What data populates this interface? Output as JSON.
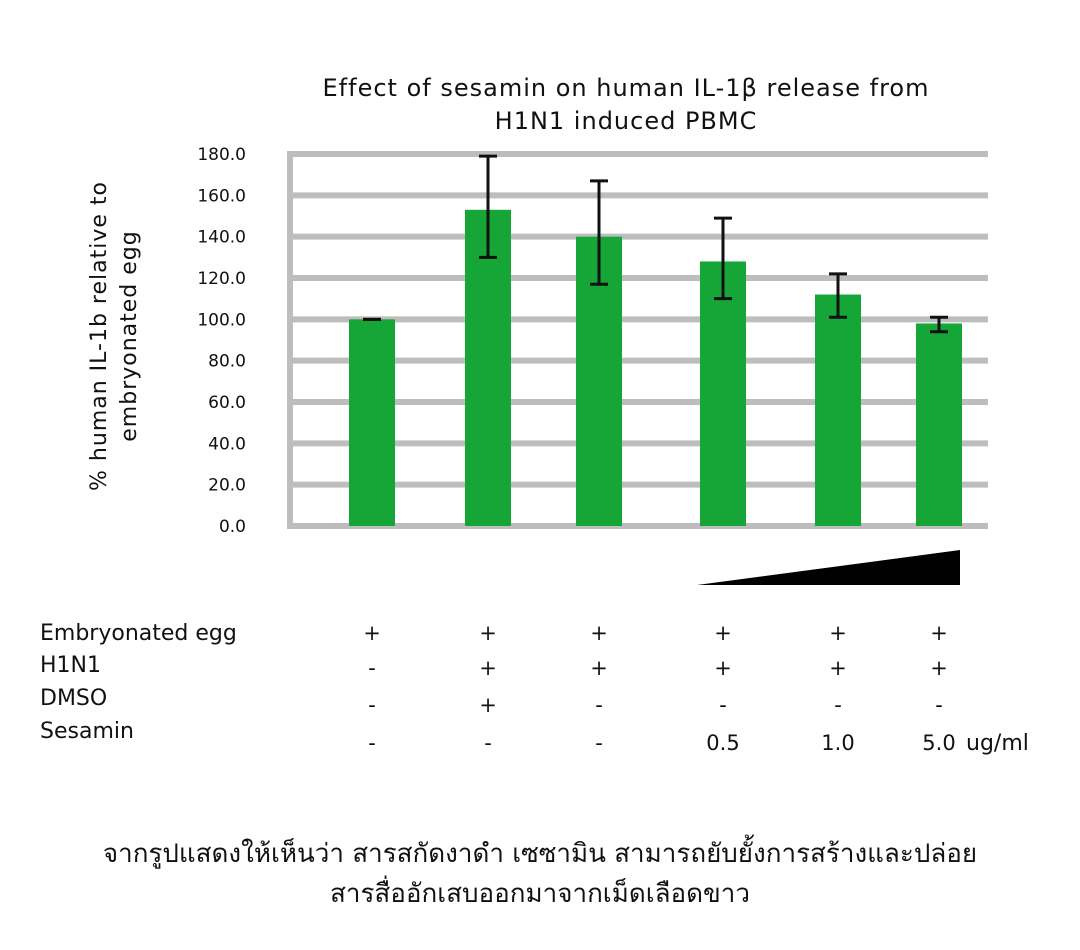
{
  "chart_data": {
    "type": "bar",
    "title_lines": [
      "Effect of sesamin on human IL-1β release from",
      "H1N1 induced PBMC"
    ],
    "ylabel_lines": [
      "% human IL-1b relative to",
      "embryonated egg"
    ],
    "ylim": [
      0,
      180
    ],
    "yticks": [
      "0.0",
      "20.0",
      "40.0",
      "60.0",
      "80.0",
      "100.0",
      "120.0",
      "140.0",
      "160.0",
      "180.0"
    ],
    "grid": true,
    "bar_color": "#16a537",
    "grid_color": "#bdbdbd",
    "values": [
      100,
      153,
      140,
      128,
      112,
      98
    ],
    "errors": [
      [
        100,
        100
      ],
      [
        130,
        179
      ],
      [
        117,
        167
      ],
      [
        110,
        149
      ],
      [
        101,
        122
      ],
      [
        94,
        101
      ]
    ],
    "wedge": "increasing sesamin concentration"
  },
  "conditions": {
    "rows": [
      {
        "label": "Embryonated egg",
        "values": [
          "+",
          "+",
          "+",
          "+",
          "+",
          "+"
        ]
      },
      {
        "label": "H1N1",
        "values": [
          "-",
          "+",
          "+",
          "+",
          "+",
          "+"
        ]
      },
      {
        "label": "DMSO",
        "values": [
          "-",
          "+",
          "-",
          "-",
          "-",
          "-"
        ]
      },
      {
        "label": "Sesamin",
        "values": [
          "-",
          "-",
          "-",
          "0.5",
          "1.0",
          "5.0"
        ]
      }
    ],
    "unit": "ug/ml"
  },
  "caption": {
    "line1": "จากรูปแสดงให้เห็นว่า สารสกัดงาดำ เซซามิน สามารถยับยั้งการสร้างและปล่อย",
    "line2": "สารสื่ออักเสบออกมาจากเม็ดเลือดขาว"
  }
}
